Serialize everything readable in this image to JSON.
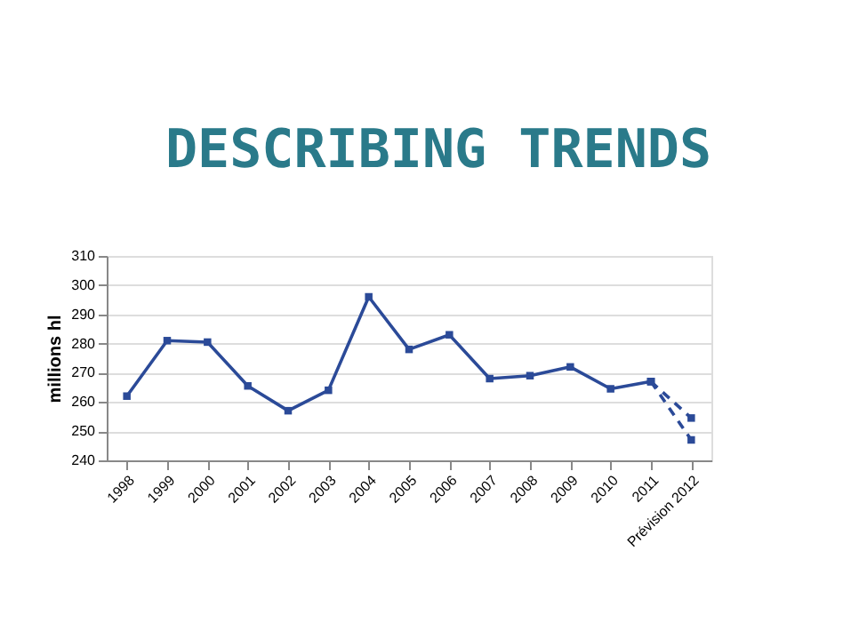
{
  "chart_data": {
    "type": "line",
    "title": "DESCRIBING TRENDS",
    "ylabel": "millions  hl",
    "categories": [
      "1998",
      "1999",
      "2000",
      "2001",
      "2002",
      "2003",
      "2004",
      "2005",
      "2006",
      "2007",
      "2008",
      "2009",
      "2010",
      "2011",
      "Prévision 2012"
    ],
    "series": [
      {
        "color": "#2b4a98",
        "line_style": "solid",
        "values": [
          262,
          281,
          280.5,
          265.5,
          257,
          264,
          296,
          278,
          283,
          268,
          269,
          272,
          264.5,
          267,
          null
        ]
      },
      {
        "color": "#2b4a98",
        "line_style": "dashed",
        "values": [
          null,
          null,
          null,
          null,
          null,
          null,
          null,
          null,
          null,
          null,
          null,
          null,
          null,
          267,
          254.5
        ]
      },
      {
        "color": "#2b4a98",
        "line_style": "dashed",
        "values": [
          null,
          null,
          null,
          null,
          null,
          null,
          null,
          null,
          null,
          null,
          null,
          null,
          null,
          267,
          247
        ]
      }
    ],
    "ylim": [
      240,
      310
    ],
    "yticks": [
      240,
      250,
      260,
      270,
      280,
      290,
      300,
      310
    ],
    "grid": "y",
    "marker": "square"
  }
}
